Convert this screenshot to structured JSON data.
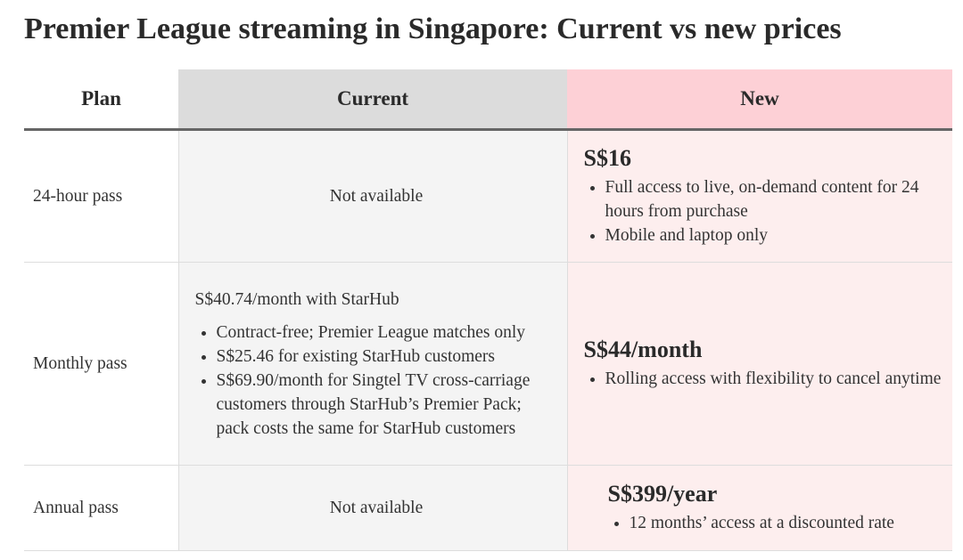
{
  "title": "Premier League streaming in Singapore: Current vs new prices",
  "table": {
    "headers": [
      "Plan",
      "Current",
      "New"
    ],
    "rows": [
      {
        "plan": "24-hour pass",
        "current": {
          "text": "Not available"
        },
        "new": {
          "price": "S$16",
          "bullets": [
            "Full access to live, on-demand content for 24 hours from purchase",
            "Mobile and laptop only"
          ]
        }
      },
      {
        "plan": "Monthly pass",
        "current": {
          "text": "S$40.74/month with StarHub",
          "bullets": [
            "Contract-free; Premier League matches only",
            "S$25.46 for existing StarHub customers",
            "S$69.90/month for Singtel TV cross-carriage customers through StarHub’s Premier Pack; pack costs the same for StarHub customers"
          ]
        },
        "new": {
          "price": "S$44/month",
          "bullets": [
            "Rolling access with flexibility to cancel anytime"
          ]
        }
      },
      {
        "plan": "Annual pass",
        "current": {
          "text": "Not available"
        },
        "new": {
          "price": "S$399/year",
          "bullets": [
            "12 months’ access at a discounted rate"
          ]
        }
      }
    ]
  }
}
